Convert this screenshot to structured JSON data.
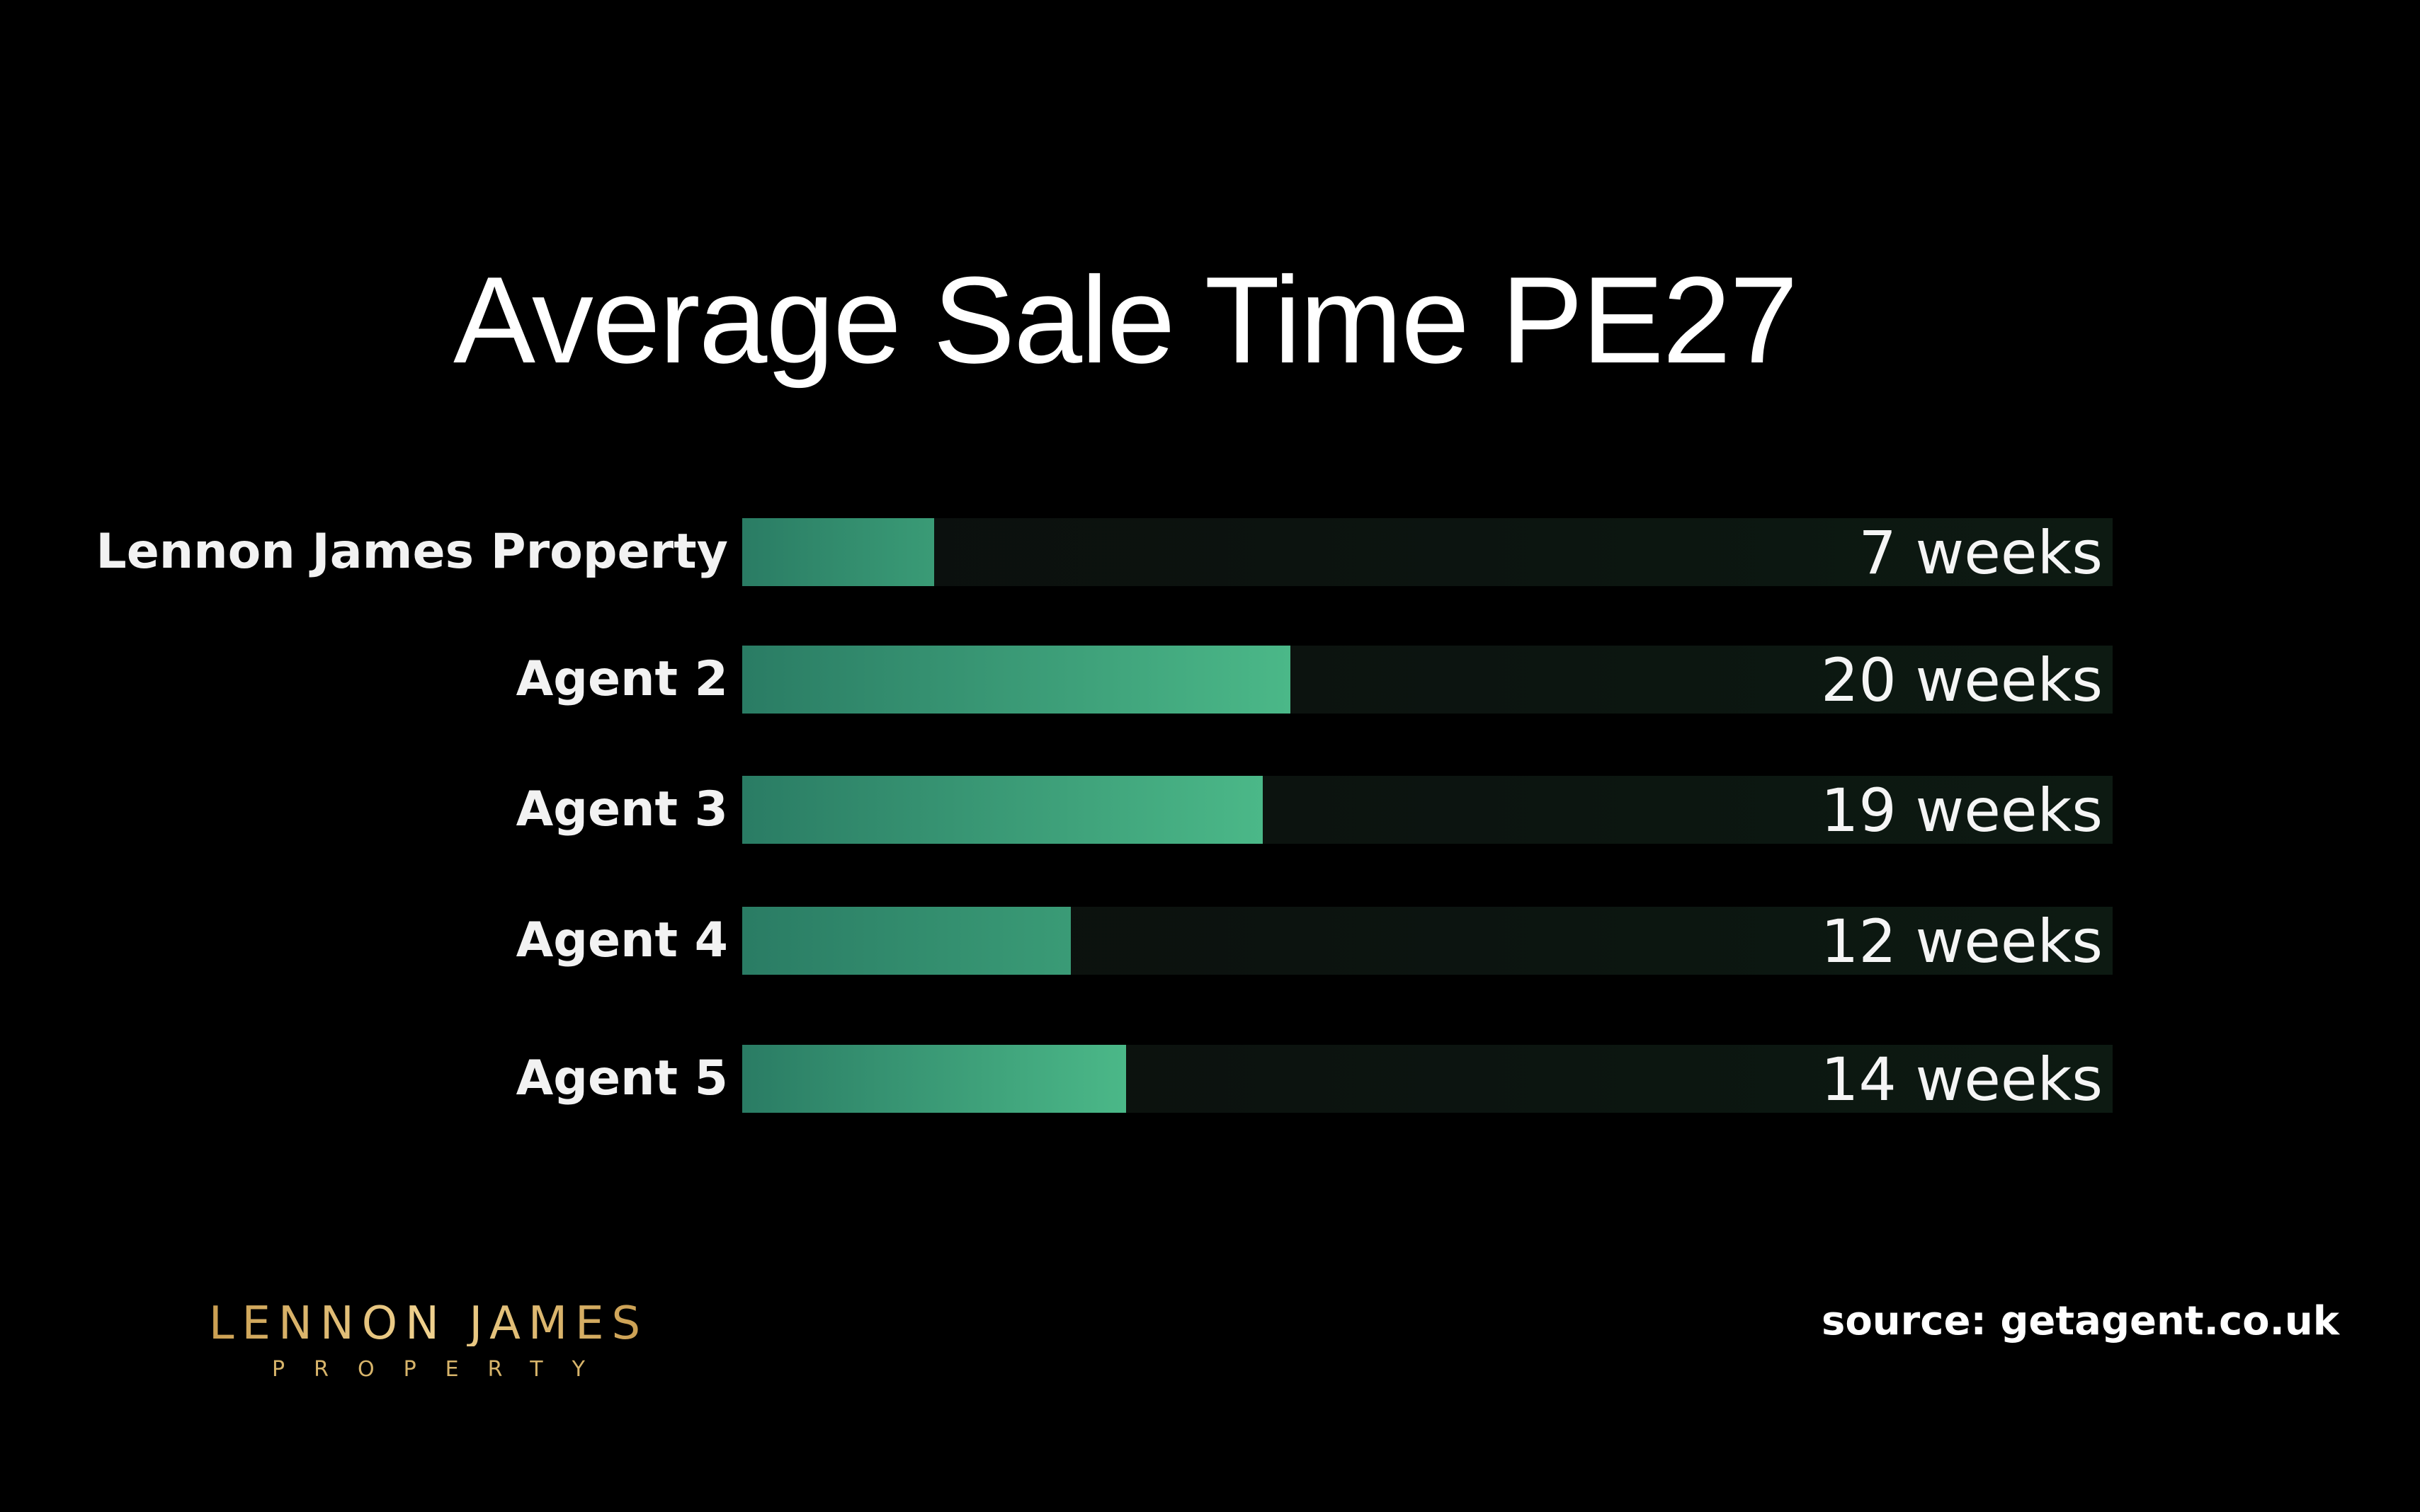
{
  "chart_data": {
    "type": "bar",
    "orientation": "horizontal",
    "title": "Average Sale Time PE27",
    "categories": [
      "Lennon James Property",
      "Agent 2",
      "Agent 3",
      "Agent 4",
      "Agent 5"
    ],
    "values": [
      7,
      20,
      19,
      12,
      14
    ],
    "value_labels": [
      "7 weeks",
      "20 weeks",
      "19 weeks",
      "12 weeks",
      "14 weeks"
    ],
    "unit": "weeks",
    "grid": false,
    "legend": "none",
    "colors": {
      "bar_start": "#2a7c64",
      "bar_end": "#4bb888",
      "track": "#0c1510",
      "background": "#000000"
    }
  },
  "footer": {
    "logo_main": "LENNON JAMES",
    "logo_sub": "PROPERTY",
    "source": "source: getagent.co.uk"
  }
}
